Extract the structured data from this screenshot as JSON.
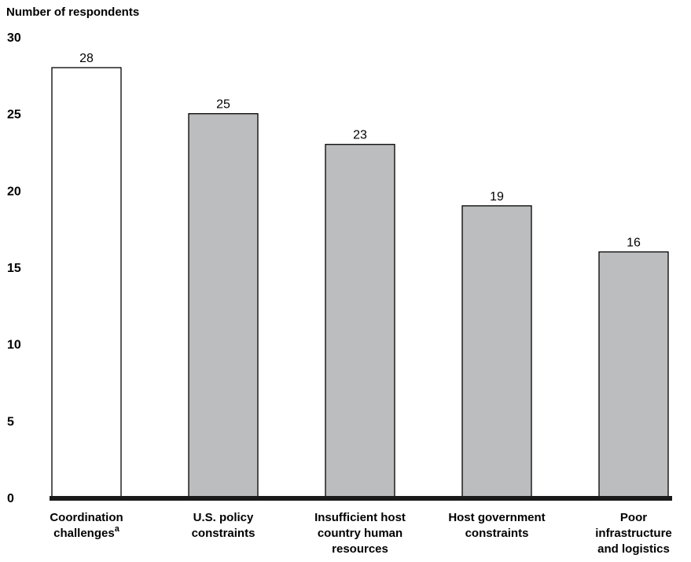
{
  "chart_data": {
    "type": "bar",
    "ylabel": "Number  of respondents",
    "ylim": [
      0,
      30
    ],
    "yticks": [
      "0",
      "5",
      "10",
      "15",
      "20",
      "25",
      "30"
    ],
    "categories": [
      [
        "Coordination",
        "challenges"
      ],
      [
        "U.S. policy",
        "constraints"
      ],
      [
        "Insufficient host",
        "country human",
        "resources"
      ],
      [
        "Host government",
        "constraints"
      ],
      [
        "Poor",
        "infrastructure",
        "and logistics"
      ]
    ],
    "category_superscripts": [
      "a",
      "",
      "",
      "",
      ""
    ],
    "values": [
      28,
      25,
      23,
      19,
      16
    ],
    "data_labels": [
      "28",
      "25",
      "23",
      "19",
      "16"
    ],
    "bar_fills": [
      "#ffffff",
      "#bbbdbf",
      "#bbbdbf",
      "#bbbdbf",
      "#bbbdbf"
    ],
    "grid": false
  }
}
